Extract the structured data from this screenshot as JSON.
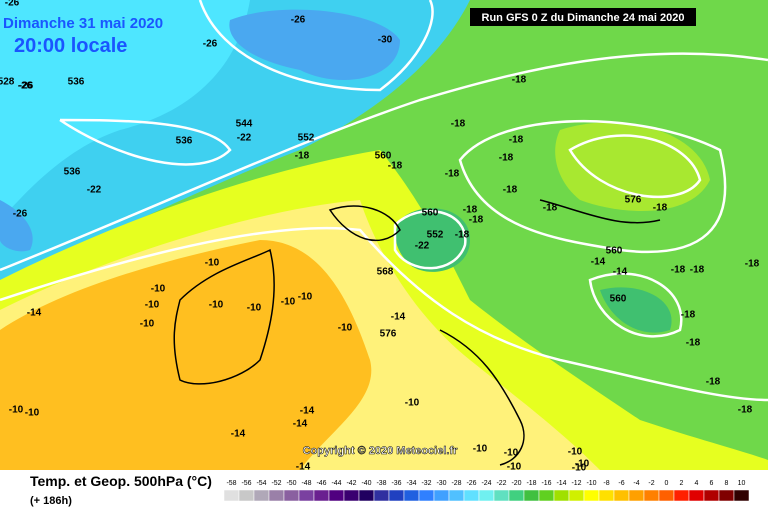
{
  "header": {
    "date": "Dimanche 31 mai 2020",
    "time": "20:00 locale",
    "run": "Run GFS 0 Z du Dimanche 24 mai 2020"
  },
  "footer": {
    "copyright": "Copyright © 2020 Meteociel.fr",
    "product": "Temp. et Geop. 500hPa (°C)",
    "lead_time": "(+ 186h)"
  },
  "map_labels": [
    "-26",
    "-26",
    "-26",
    "-30",
    "-26",
    "528",
    "-26",
    "536",
    "544",
    "-22",
    "552",
    "-18",
    "536",
    "536",
    "-22",
    "-26",
    "-18",
    "-18",
    "-18",
    "-18",
    "560",
    "-18",
    "-18",
    "-18",
    "-18",
    "576",
    "-18",
    "560",
    "-18",
    "-18",
    "552",
    "-18",
    "-22",
    "560",
    "-14",
    "-14",
    "-18",
    "-18",
    "-18",
    "568",
    "560",
    "-18",
    "-18",
    "-18",
    "-18",
    "-10",
    "-10",
    "-10",
    "-10",
    "-10",
    "-10",
    "-10",
    "-14",
    "-10",
    "-10",
    "-14",
    "576",
    "-10",
    "-10",
    "-14",
    "-14",
    "-14",
    "-10",
    "-10",
    "-10",
    "-10",
    "-14",
    "-10",
    "-10",
    "-10"
  ],
  "legend": {
    "values": [
      -58,
      -56,
      -54,
      -52,
      -50,
      -48,
      -46,
      -44,
      -42,
      -40,
      -38,
      -36,
      -34,
      -32,
      -30,
      -28,
      -26,
      -24,
      -22,
      -20,
      -18,
      -16,
      -14,
      -12,
      -10,
      -8,
      -6,
      -4,
      -2,
      0,
      2,
      4,
      6,
      8,
      10
    ],
    "colors": [
      "#e0e0e0",
      "#c8c8c8",
      "#b0a8b8",
      "#9a80a8",
      "#8a60a0",
      "#7a40a0",
      "#6a2090",
      "#500080",
      "#3a0070",
      "#200060",
      "#3030a0",
      "#2040c0",
      "#2060e0",
      "#3080ff",
      "#40a0ff",
      "#50c0ff",
      "#60e0ff",
      "#70f0f0",
      "#60e0c0",
      "#40d080",
      "#40c040",
      "#60d020",
      "#a0e000",
      "#d0f000",
      "#ffff00",
      "#ffe000",
      "#ffc000",
      "#ffa000",
      "#ff8000",
      "#ff6000",
      "#ff2000",
      "#e00000",
      "#b00000",
      "#800000",
      "#300000"
    ]
  }
}
